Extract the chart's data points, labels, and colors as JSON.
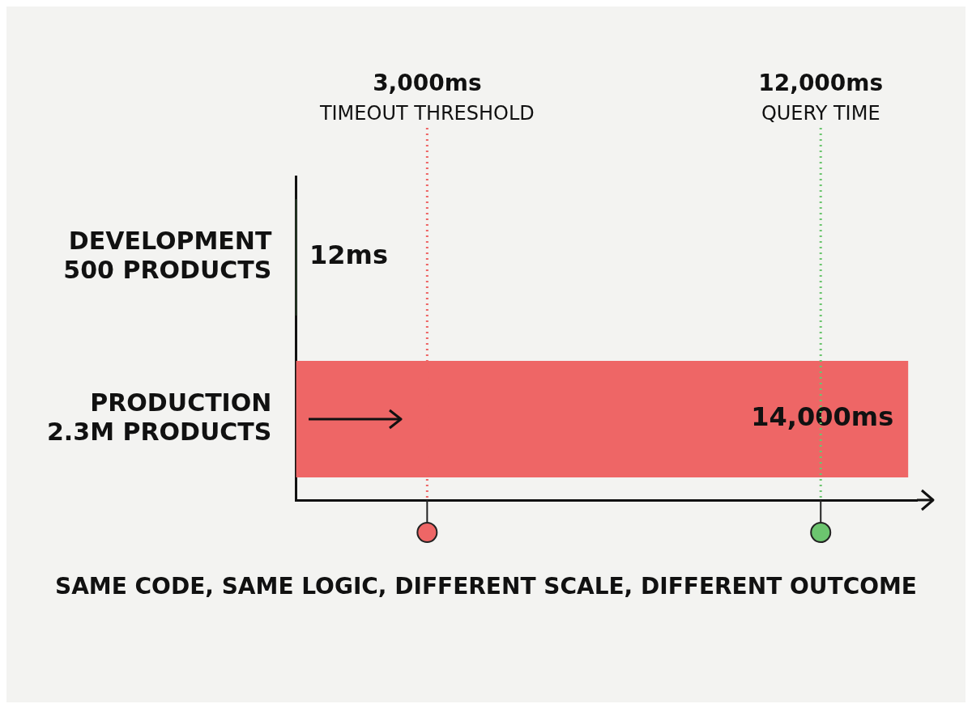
{
  "chart_data": {
    "type": "bar",
    "orientation": "horizontal",
    "categories": [
      "DEVELOPMENT\n500 PRODUCTS",
      "PRODUCTION\n2.3M PRODUCTS"
    ],
    "series": [
      {
        "colors": [
          "#6cc56f",
          "#ee6666"
        ],
        "values": [
          12,
          14000
        ],
        "value_labels": [
          "12ms",
          "14,000ms"
        ]
      }
    ],
    "xlim": [
      0,
      14200
    ],
    "tick_labels": "y",
    "grid": false,
    "legend": false,
    "ref_lines": [
      {
        "axis": "x",
        "value": 12000,
        "label": "12,000ms\nQUERY TIME",
        "color": "#6cc56f",
        "line_style": "dotted"
      },
      {
        "axis": "x",
        "value": 3000,
        "label": "3,000ms\nTIMEOUT THRESHOLD",
        "color": "#ee6666",
        "line_style": "dotted"
      }
    ],
    "annotations": [
      "SAME CODE, SAME LOGIC, DIFFERENT SCALE, DIFFERENT OUTCOME"
    ]
  }
}
